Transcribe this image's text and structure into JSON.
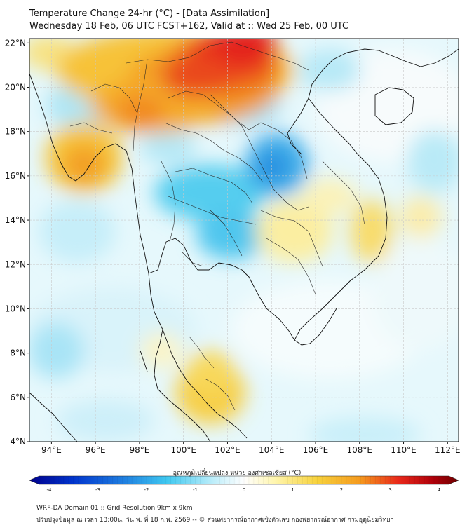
{
  "title": {
    "line1": "Temperature Change 24-hr (°C) - [Data Assimilation]",
    "line2": "Wednesday 18 Feb, 06 UTC FCST+162, Valid at :: Wed 25 Feb, 00 UTC"
  },
  "map": {
    "lon_range": [
      93,
      112.5
    ],
    "lat_range": [
      4,
      22.2
    ],
    "lon_labels": [
      "94°E",
      "96°E",
      "98°E",
      "100°E",
      "102°E",
      "104°E",
      "106°E",
      "108°E",
      "110°E",
      "112°E"
    ],
    "lon_values": [
      94,
      96,
      98,
      100,
      102,
      104,
      106,
      108,
      110,
      112
    ],
    "lat_labels": [
      "22°N",
      "20°N",
      "18°N",
      "16°N",
      "14°N",
      "12°N",
      "10°N",
      "8°N",
      "6°N",
      "4°N"
    ],
    "lat_values": [
      22,
      20,
      18,
      16,
      14,
      12,
      10,
      8,
      6,
      4
    ]
  },
  "colorbar": {
    "title": "อุณหภูมิเปลี่ยนแปลง หน่วย องศาเซลเซียส (°C)",
    "range": [
      -4,
      4
    ],
    "tick_labels": [
      "-4",
      "-3",
      "-2",
      "-1",
      "0",
      "1",
      "2",
      "3",
      "4"
    ],
    "tick_values": [
      -4,
      -3,
      -2,
      -1,
      0,
      1,
      2,
      3,
      4
    ],
    "stops": [
      "#00008b",
      "#0033cc",
      "#1f7fe0",
      "#3fc8f0",
      "#bfeefa",
      "#ffffff",
      "#fff6b0",
      "#f7d23c",
      "#f59a1e",
      "#e8281a",
      "#b0000a",
      "#6e0000"
    ]
  },
  "footer": {
    "line1": "WRF-DA Domain 01 :: Grid Resolution 9km x 9km",
    "line2": "ปรับปรุงข้อมูล ณ เวลา 13:00น. วัน พ. ที่ 18 ก.พ. 2569 -- © ส่วนพยากรณ์อากาศเชิงตัวเลข กองพยากรณ์อากาศ กรมอุตุนิยมวิทยา"
  }
}
